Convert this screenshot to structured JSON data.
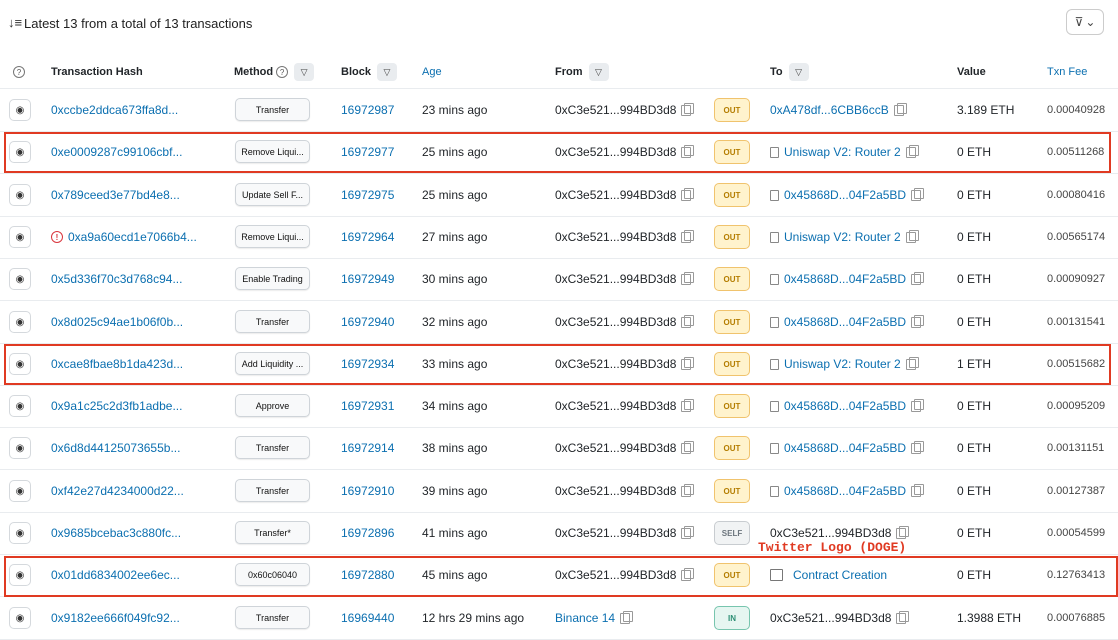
{
  "header": {
    "summary": "Latest 13 from a total of 13 transactions",
    "sort_icon": "sort-icon",
    "filter_icon": "filter-icon"
  },
  "columns": {
    "info": "?",
    "hash": "Transaction Hash",
    "method": "Method",
    "block": "Block",
    "age": "Age",
    "from": "From",
    "to": "To",
    "value": "Value",
    "fee": "Txn Fee"
  },
  "rows": [
    {
      "hash": "0xccbe2ddca673ffa8d...",
      "method": "Transfer",
      "block": "16972987",
      "age": "23 mins ago",
      "from": "0xC3e521...994BD3d8",
      "dir": "OUT",
      "to": "0xA478df...6CBB6ccB",
      "value": "3.189 ETH",
      "fee": "0.00040928"
    },
    {
      "hash": "0xe0009287c99106cbf...",
      "method": "Remove Liqui...",
      "block": "16972977",
      "age": "25 mins ago",
      "from": "0xC3e521...994BD3d8",
      "dir": "OUT",
      "to": "Uniswap V2: Router 2",
      "value": "0 ETH",
      "fee": "0.00511268"
    },
    {
      "hash": "0x789ceed3e77bd4e8...",
      "method": "Update Sell F...",
      "block": "16972975",
      "age": "25 mins ago",
      "from": "0xC3e521...994BD3d8",
      "dir": "OUT",
      "to": "0x45868D...04F2a5BD",
      "value": "0 ETH",
      "fee": "0.00080416"
    },
    {
      "hash": "0xa9a60ecd1e7066b4...",
      "method": "Remove Liqui...",
      "block": "16972964",
      "age": "27 mins ago",
      "from": "0xC3e521...994BD3d8",
      "dir": "OUT",
      "to": "Uniswap V2: Router 2",
      "value": "0 ETH",
      "fee": "0.00565174"
    },
    {
      "hash": "0x5d336f70c3d768c94...",
      "method": "Enable Trading",
      "block": "16972949",
      "age": "30 mins ago",
      "from": "0xC3e521...994BD3d8",
      "dir": "OUT",
      "to": "0x45868D...04F2a5BD",
      "value": "0 ETH",
      "fee": "0.00090927"
    },
    {
      "hash": "0x8d025c94ae1b06f0b...",
      "method": "Transfer",
      "block": "16972940",
      "age": "32 mins ago",
      "from": "0xC3e521...994BD3d8",
      "dir": "OUT",
      "to": "0x45868D...04F2a5BD",
      "value": "0 ETH",
      "fee": "0.00131541"
    },
    {
      "hash": "0xcae8fbae8b1da423d...",
      "method": "Add Liquidity ...",
      "block": "16972934",
      "age": "33 mins ago",
      "from": "0xC3e521...994BD3d8",
      "dir": "OUT",
      "to": "Uniswap V2: Router 2",
      "value": "1 ETH",
      "fee": "0.00515682"
    },
    {
      "hash": "0x9a1c25c2d3fb1adbe...",
      "method": "Approve",
      "block": "16972931",
      "age": "34 mins ago",
      "from": "0xC3e521...994BD3d8",
      "dir": "OUT",
      "to": "0x45868D...04F2a5BD",
      "value": "0 ETH",
      "fee": "0.00095209"
    },
    {
      "hash": "0x6d8d44125073655b...",
      "method": "Transfer",
      "block": "16972914",
      "age": "38 mins ago",
      "from": "0xC3e521...994BD3d8",
      "dir": "OUT",
      "to": "0x45868D...04F2a5BD",
      "value": "0 ETH",
      "fee": "0.00131151"
    },
    {
      "hash": "0xf42e27d4234000d22...",
      "method": "Transfer",
      "block": "16972910",
      "age": "39 mins ago",
      "from": "0xC3e521...994BD3d8",
      "dir": "OUT",
      "to": "0x45868D...04F2a5BD",
      "value": "0 ETH",
      "fee": "0.00127387"
    },
    {
      "hash": "0x9685bcebac3c880fc...",
      "method": "Transfer*",
      "block": "16972896",
      "age": "41 mins ago",
      "from": "0xC3e521...994BD3d8",
      "dir": "SELF",
      "to": "0xC3e521...994BD3d8",
      "value": "0 ETH",
      "fee": "0.00054599"
    },
    {
      "hash": "0x01dd6834002ee6ec...",
      "method": "0x60c06040",
      "block": "16972880",
      "age": "45 mins ago",
      "from": "0xC3e521...994BD3d8",
      "dir": "OUT",
      "to": "Contract Creation",
      "value": "0 ETH",
      "fee": "0.12763413"
    },
    {
      "hash": "0x9182ee666f049fc92...",
      "method": "Transfer",
      "block": "16969440",
      "age": "12 hrs 29 mins ago",
      "from": "Binance 14",
      "dir": "IN",
      "to": "0xC3e521...994BD3d8",
      "value": "1.3988 ETH",
      "fee": "0.00076885"
    }
  ],
  "annotation": "Twitter Logo (DOGE)",
  "colors": {
    "link": "#0b6fb0",
    "highlight": "#e03a22",
    "out": "#b47d00",
    "in": "#2c8f74"
  }
}
